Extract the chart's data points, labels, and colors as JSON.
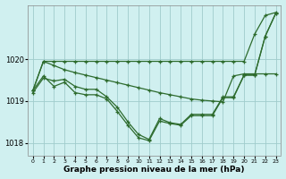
{
  "xlabel": "Graphe pression niveau de la mer (hPa)",
  "background_color": "#d0f0f0",
  "grid_color": "#a0cccc",
  "line_color": "#2d6b2d",
  "ylim": [
    1017.7,
    1021.3
  ],
  "xlim": [
    -0.5,
    23.5
  ],
  "yticks": [
    1018,
    1019,
    1020
  ],
  "xticks": [
    0,
    1,
    2,
    3,
    4,
    5,
    6,
    7,
    8,
    9,
    10,
    11,
    12,
    13,
    14,
    15,
    16,
    17,
    18,
    19,
    20,
    21,
    22,
    23
  ],
  "line1_x": [
    0,
    1,
    2,
    3,
    4,
    5,
    6,
    7,
    8,
    9,
    10,
    11,
    12,
    13,
    14,
    15,
    16,
    17,
    18,
    19,
    20,
    21,
    22,
    23
  ],
  "line1_y": [
    1019.25,
    1019.95,
    1019.85,
    1019.75,
    1019.68,
    1019.62,
    1019.56,
    1019.5,
    1019.44,
    1019.38,
    1019.32,
    1019.26,
    1019.2,
    1019.15,
    1019.1,
    1019.05,
    1019.02,
    1019.0,
    1018.98,
    1019.6,
    1019.65,
    1019.65,
    1019.65,
    1019.65
  ],
  "line2_x": [
    0,
    1,
    2,
    3,
    4,
    5,
    6,
    7,
    8,
    9,
    10,
    11,
    12,
    13,
    14,
    15,
    16,
    17,
    18,
    19,
    20,
    21,
    22,
    23
  ],
  "line2_y": [
    1019.25,
    1019.95,
    1019.95,
    1019.95,
    1019.95,
    1019.95,
    1019.95,
    1019.95,
    1019.95,
    1019.95,
    1019.95,
    1019.95,
    1019.95,
    1019.95,
    1019.95,
    1019.95,
    1019.95,
    1019.95,
    1019.95,
    1019.95,
    1019.95,
    1020.6,
    1021.05,
    1021.12
  ],
  "line3_x": [
    0,
    1,
    2,
    3,
    4,
    5,
    6,
    7,
    8,
    9,
    10,
    11,
    12,
    13,
    14,
    15,
    16,
    17,
    18,
    19,
    20,
    21,
    22,
    23
  ],
  "line3_y": [
    1019.25,
    1019.6,
    1019.35,
    1019.45,
    1019.2,
    1019.15,
    1019.15,
    1019.05,
    1018.75,
    1018.42,
    1018.12,
    1018.05,
    1018.52,
    1018.46,
    1018.42,
    1018.65,
    1018.65,
    1018.65,
    1019.08,
    1019.08,
    1019.62,
    1019.62,
    1020.55,
    1021.1
  ],
  "line4_x": [
    0,
    1,
    2,
    3,
    4,
    5,
    6,
    7,
    8,
    9,
    10,
    11,
    12,
    13,
    14,
    15,
    16,
    17,
    18,
    19,
    20,
    21,
    22,
    23
  ],
  "line4_y": [
    1019.2,
    1019.55,
    1019.48,
    1019.52,
    1019.35,
    1019.28,
    1019.28,
    1019.1,
    1018.85,
    1018.5,
    1018.2,
    1018.08,
    1018.58,
    1018.48,
    1018.44,
    1018.68,
    1018.68,
    1018.68,
    1019.1,
    1019.1,
    1019.62,
    1019.62,
    1020.55,
    1021.1
  ]
}
